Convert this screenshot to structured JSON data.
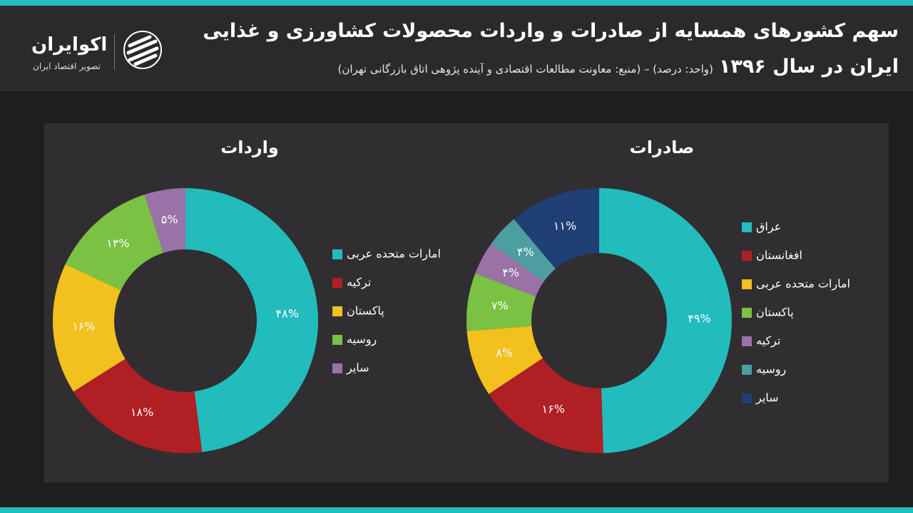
{
  "header": {
    "title_lines": [
      "سهم کشورهای همسایه از صادرات و واردات محصولات کشاورزی و غذایی",
      "ایران در سال ۱۳۹۶"
    ],
    "subtitle": "(واحد: درصد) – (منبع: معاونت مطالعات اقتصادی و آینده پژوهی اتاق بازرگانی تهران)",
    "logo_name": "اکوایران",
    "logo_tagline": "تصویر اقتصاد ایران"
  },
  "chart_data": [
    {
      "type": "donut",
      "title": "واردات",
      "categories": [
        "امارات متحده عربی",
        "ترکیه",
        "پاکستان",
        "روسیه",
        "سایر"
      ],
      "values": [
        48,
        18,
        16,
        13,
        5
      ],
      "value_labels": [
        "۴۸%",
        "۱۸%",
        "۱۶%",
        "۱۳%",
        "۵%"
      ],
      "colors": [
        "#22bcbd",
        "#b01f24",
        "#f2c11d",
        "#7bc143",
        "#9a72a7"
      ]
    },
    {
      "type": "donut",
      "title": "صادرات",
      "categories": [
        "عراق",
        "افغانستان",
        "امارات متحده عربی",
        "پاکستان",
        "ترکیه",
        "روسیه",
        "سایر"
      ],
      "values": [
        49,
        16,
        8,
        7,
        4,
        4,
        11
      ],
      "value_labels": [
        "۴۹%",
        "۱۶%",
        "۸%",
        "۷%",
        "۴%",
        "۴%",
        "۱۱%"
      ],
      "colors": [
        "#22bcbd",
        "#b01f24",
        "#f2c11d",
        "#7bc143",
        "#9a72a7",
        "#4c9ea1",
        "#203f74"
      ]
    }
  ]
}
